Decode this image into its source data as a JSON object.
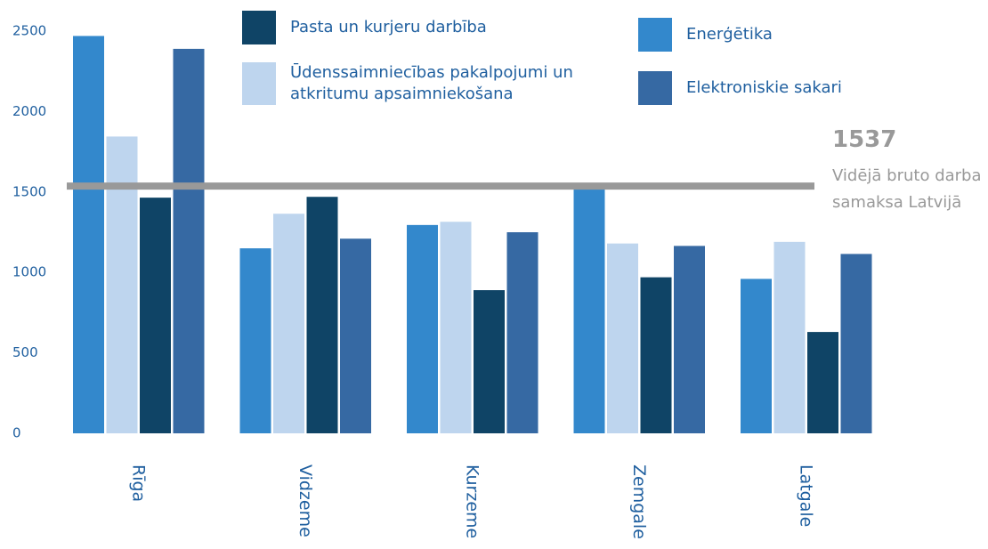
{
  "chart_data": {
    "type": "bar",
    "categories": [
      "Rīga",
      "Vidzeme",
      "Kurzeme",
      "Zemgale",
      "Latgale"
    ],
    "series": [
      {
        "name": "Enerģētika",
        "color": "#3388cc",
        "values": [
          2470,
          1150,
          1295,
          1530,
          960
        ]
      },
      {
        "name": "Ūdenssaimniecības pakalpojumi un atkritumu apsaimniekošana",
        "color": "#bed5ee",
        "values": [
          1845,
          1365,
          1315,
          1180,
          1190
        ]
      },
      {
        "name": "Pasta un kurjeru darbība",
        "color": "#0f4466",
        "values": [
          1465,
          1470,
          890,
          970,
          630
        ]
      },
      {
        "name": "Elektroniskie sakari",
        "color": "#3669a3",
        "values": [
          2390,
          1210,
          1250,
          1165,
          1115
        ]
      }
    ],
    "ylim": [
      0,
      2500
    ],
    "yticks": [
      0,
      500,
      1000,
      1500,
      2000,
      2500
    ],
    "reference_line": {
      "value": 1537,
      "label": "Vidējā bruto darba samaksa Latvijā",
      "color": "#999999"
    }
  }
}
